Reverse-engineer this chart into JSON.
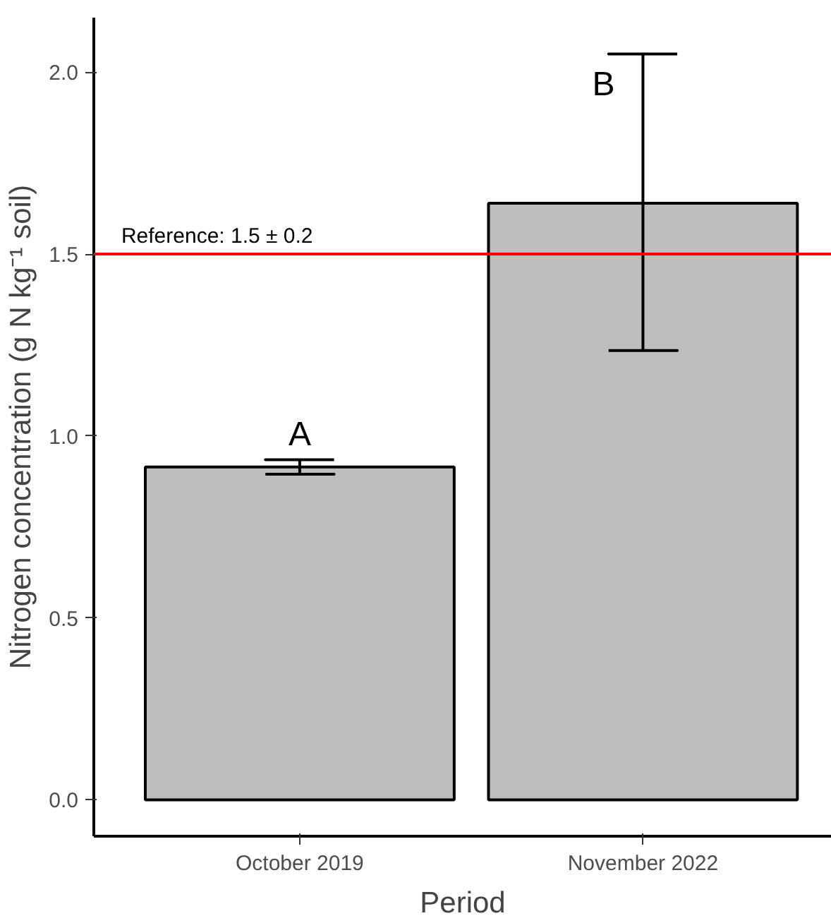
{
  "chart_data": {
    "type": "bar",
    "xlabel": "Period",
    "ylabel": "Nitrogen concentration (g N kg⁻¹ soil)",
    "categories": [
      "October 2019",
      "November 2022"
    ],
    "values": [
      0.915,
      1.64
    ],
    "errors": [
      0.02,
      [
        1.235,
        2.05
      ]
    ],
    "color": "#bebebe",
    "ylim": [
      -0.1,
      2.15
    ],
    "yticks": [
      {
        "value": 0,
        "label": "0.0"
      },
      {
        "value": 0.5,
        "label": "0.5"
      },
      {
        "value": 1,
        "label": "1.0"
      },
      {
        "value": 1.5,
        "label": "1.5"
      },
      {
        "value": 2,
        "label": "2.0"
      }
    ],
    "grid": false,
    "ref_lines": [
      {
        "axis": "y",
        "value": 1.5,
        "label": "Reference: 1.5 ± 0.2",
        "color": "#ff0000"
      }
    ],
    "annotations": [
      "A",
      "B"
    ]
  }
}
